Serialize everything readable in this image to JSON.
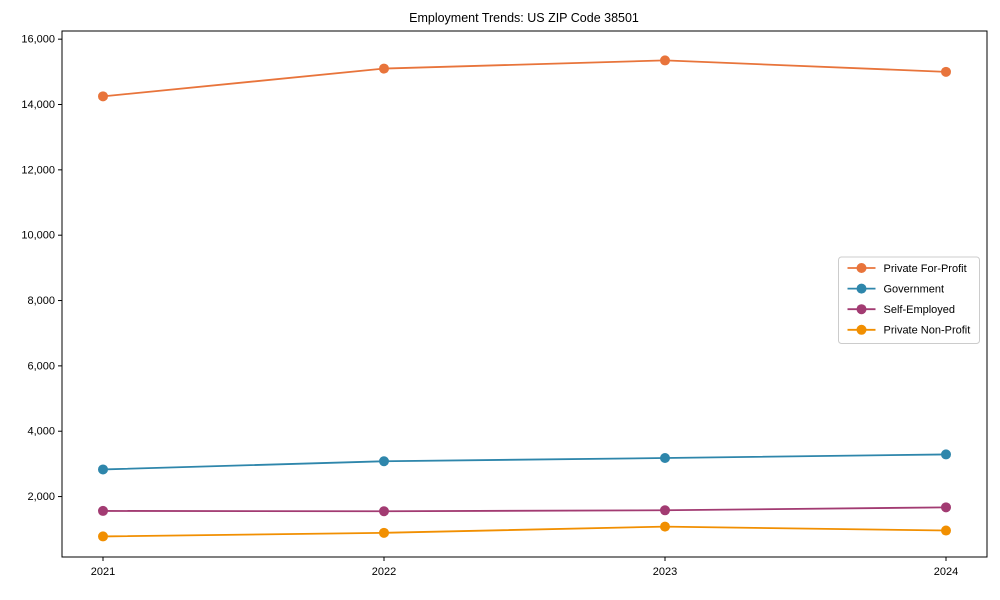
{
  "chart_data": {
    "type": "line",
    "title": "Employment Trends: US ZIP Code 38501",
    "xlabel": "",
    "ylabel": "",
    "categories": [
      "2021",
      "2022",
      "2023",
      "2024"
    ],
    "series": [
      {
        "name": "Private For-Profit",
        "color": "#E8743B",
        "values": [
          14250,
          15100,
          15350,
          15000
        ]
      },
      {
        "name": "Government",
        "color": "#2E86AB",
        "values": [
          2830,
          3080,
          3180,
          3290
        ]
      },
      {
        "name": "Self-Employed",
        "color": "#A23B72",
        "values": [
          1560,
          1550,
          1580,
          1670
        ]
      },
      {
        "name": "Private Non-Profit",
        "color": "#F18F01",
        "values": [
          780,
          890,
          1080,
          960
        ]
      }
    ],
    "yticks": [
      2000,
      4000,
      6000,
      8000,
      10000,
      12000,
      14000,
      16000
    ],
    "ylim": [
      150,
      16250
    ],
    "grid": false,
    "marker": "circle",
    "legend_position": "center right",
    "axis_color": "#000000",
    "background_color": "#ffffff",
    "legend_border_color": "#cccccc",
    "legend_background": "#ffffff"
  }
}
